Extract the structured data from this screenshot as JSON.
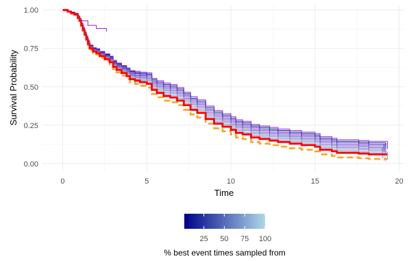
{
  "chart_data": {
    "type": "line",
    "xlabel": "Time",
    "ylabel": "Survival Probability",
    "xlim": [
      -1.2,
      20.3
    ],
    "ylim": [
      -0.05,
      1.03
    ],
    "x_ticks": [
      0,
      5,
      10,
      15,
      20
    ],
    "x_tick_labels": [
      "0",
      "5",
      "10",
      "15",
      "20"
    ],
    "y_ticks": [
      0.0,
      0.25,
      0.5,
      0.75,
      1.0
    ],
    "y_tick_labels": [
      "0.00",
      "0.25",
      "0.50",
      "0.75",
      "1.00"
    ],
    "grid": true,
    "legend": {
      "position": "bottom",
      "title": "% best event times sampled from",
      "type": "colorbar",
      "range": [
        1,
        100
      ],
      "ticks": [
        25,
        50,
        75,
        100
      ],
      "tick_labels": [
        "25",
        "50",
        "75",
        "100"
      ],
      "color_low": "#00008B",
      "color_high": "#ADD8E6"
    },
    "base_curve": {
      "x": [
        0,
        0.3,
        0.5,
        0.7,
        0.9,
        1.0,
        1.1,
        1.2,
        1.3,
        1.4,
        1.5,
        1.6,
        1.8,
        2.0,
        2.2,
        2.5,
        2.8,
        3.0,
        3.2,
        3.5,
        3.8,
        4.0,
        4.3,
        4.6,
        5.0,
        5.3,
        5.6,
        6.0,
        6.4,
        6.8,
        7.2,
        7.6,
        8.0,
        8.5,
        9.0,
        9.5,
        10.0,
        10.3,
        10.7,
        11.2,
        11.7,
        12.3,
        12.8,
        13.5,
        14.2,
        15.0,
        15.3,
        16.0,
        16.3,
        17.0,
        17.6,
        18.2,
        18.8,
        19.2
      ],
      "y": [
        1.0,
        0.99,
        0.98,
        0.97,
        0.95,
        0.93,
        0.9,
        0.87,
        0.84,
        0.81,
        0.78,
        0.75,
        0.73,
        0.72,
        0.7,
        0.68,
        0.66,
        0.63,
        0.61,
        0.59,
        0.57,
        0.55,
        0.54,
        0.53,
        0.52,
        0.48,
        0.46,
        0.44,
        0.43,
        0.41,
        0.38,
        0.35,
        0.33,
        0.29,
        0.26,
        0.24,
        0.22,
        0.2,
        0.19,
        0.17,
        0.16,
        0.15,
        0.14,
        0.13,
        0.12,
        0.11,
        0.09,
        0.08,
        0.07,
        0.07,
        0.065,
        0.06,
        0.06,
        0.06
      ]
    },
    "series": [
      {
        "role": "sampled",
        "color": "#1A1A90",
        "lift": 0.075,
        "end_x": 19.2
      },
      {
        "role": "sampled",
        "color": "#9333E8",
        "lift": 0.085,
        "end_x": 19.3
      },
      {
        "role": "sampled",
        "color": "#9333E8",
        "lift": 0.055,
        "end_x": 19.2
      },
      {
        "role": "sampled",
        "color": "#3A3AA8",
        "lift": 0.065,
        "end_x": 19.1
      },
      {
        "role": "sampled",
        "color": "#5A5AB8",
        "lift": 0.045,
        "end_x": 19.0
      },
      {
        "role": "sampled",
        "color": "#7070C0",
        "lift": 0.035,
        "end_x": 19.2
      },
      {
        "role": "sampled",
        "color": "#8282C8",
        "lift": 0.025,
        "end_x": 19.0
      },
      {
        "role": "sampled",
        "color": "#9A9ED4",
        "lift": 0.015,
        "end_x": 19.3
      },
      {
        "role": "sampled",
        "color": "#AAB8E2",
        "lift": 0.008,
        "end_x": 19.1
      },
      {
        "role": "sampled",
        "color": "#B7CFEA",
        "lift": 0.0,
        "end_x": 19.2
      },
      {
        "role": "dashed",
        "color": "#F5A623",
        "lift": -0.03,
        "end_x": 19.3
      },
      {
        "role": "highlight",
        "color": "#FF0000",
        "lift": 0.0,
        "end_x": 19.3
      }
    ],
    "early_bump": {
      "color": "#9333E8",
      "x": [
        1.1,
        1.5,
        2.0,
        2.6
      ],
      "y": [
        0.93,
        0.9,
        0.88,
        0.86
      ]
    }
  }
}
